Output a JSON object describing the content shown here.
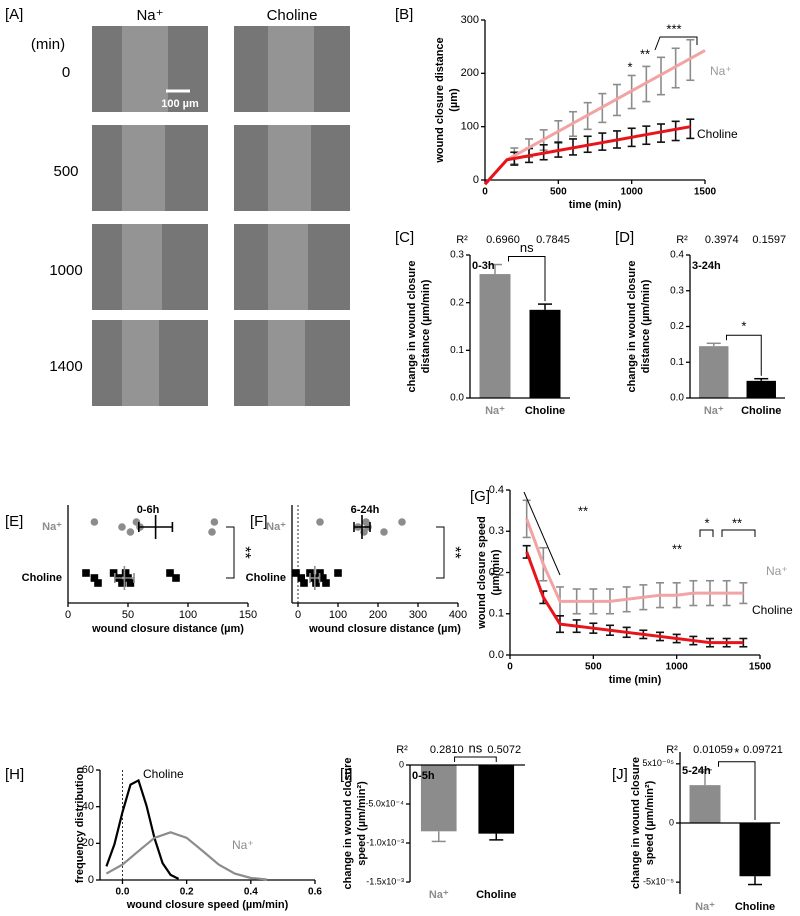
{
  "images": {
    "panel": "[A]",
    "columns": [
      "Na⁺",
      "Choline"
    ],
    "unit_label": "(min)",
    "rows": [
      "0",
      "500",
      "1000",
      "1400"
    ],
    "scale_bar": "100 µm"
  },
  "chart_data": [
    {
      "panel": "[B]",
      "type": "line",
      "xlabel": "time (min)",
      "ylabel": [
        "wound closure distance",
        "(µm)"
      ],
      "xlim": [
        0,
        1500
      ],
      "xticks": [
        0,
        500,
        1000,
        1500
      ],
      "ylim": [
        0,
        300
      ],
      "yticks": [
        0,
        100,
        200,
        300
      ],
      "annotations": [
        "*",
        "**",
        "***"
      ],
      "series": [
        {
          "name": "Na⁺",
          "color": "#f2a3a3",
          "error_color": "#8c8c8c",
          "label_color": "#999999",
          "x": [
            200,
            300,
            400,
            500,
            600,
            700,
            800,
            900,
            1000,
            1100,
            1200,
            1300,
            1400
          ],
          "values": [
            45,
            60,
            75,
            90,
            105,
            120,
            135,
            150,
            165,
            180,
            195,
            210,
            225
          ],
          "errors": [
            15,
            17,
            19,
            21,
            23,
            25,
            27,
            29,
            31,
            33,
            35,
            37,
            38
          ],
          "fit_x": [
            0,
            150,
            1500
          ],
          "fit_values": [
            -8,
            38,
            243
          ]
        },
        {
          "name": "Choline",
          "color": "#e8141c",
          "error_color": "#111111",
          "label_color": "#000000",
          "x": [
            200,
            300,
            400,
            500,
            600,
            700,
            800,
            900,
            1000,
            1100,
            1200,
            1300,
            1400
          ],
          "values": [
            40,
            46,
            52,
            57,
            62,
            67,
            72,
            76,
            80,
            84,
            88,
            92,
            96
          ],
          "errors": [
            12,
            13,
            14,
            14,
            15,
            15,
            16,
            16,
            17,
            17,
            17,
            18,
            18
          ],
          "fit_x": [
            0,
            150,
            1400
          ],
          "fit_values": [
            -8,
            38,
            100
          ]
        }
      ]
    },
    {
      "panel": "[C]",
      "type": "bar",
      "title": "0-3h",
      "ylabel": [
        "change in wound closure",
        "distance (µm/min)"
      ],
      "categories": [
        "Na⁺",
        "Choline"
      ],
      "label_colors": [
        "#8c8c8c",
        "#000000"
      ],
      "colors": [
        "#8c8c8c",
        "#000000"
      ],
      "values": [
        0.26,
        0.185
      ],
      "errors": [
        0.02,
        0.012
      ],
      "ylim": [
        0,
        0.3
      ],
      "yticks": [
        {
          "value": 0,
          "label": "0.0"
        },
        0.1,
        0.2,
        0.3
      ],
      "r2_label": "R²",
      "r2": [
        "0.6960",
        "0.7845"
      ],
      "significance": "ns"
    },
    {
      "panel": "[D]",
      "type": "bar",
      "title": "3-24h",
      "ylabel": [
        "change in wound closure",
        "distance (µm/min)"
      ],
      "categories": [
        "Na⁺",
        "Choline"
      ],
      "label_colors": [
        "#8c8c8c",
        "#000000"
      ],
      "colors": [
        "#8c8c8c",
        "#000000"
      ],
      "values": [
        0.145,
        0.048
      ],
      "errors": [
        0.008,
        0.006
      ],
      "ylim": [
        0,
        0.4
      ],
      "yticks": [
        {
          "value": 0,
          "label": "0.0"
        },
        0.1,
        0.2,
        0.3,
        0.4
      ],
      "r2_label": "R²",
      "r2": [
        "0.3974",
        "0.1597"
      ],
      "significance": "*"
    },
    {
      "panel": "[E]",
      "type": "dot",
      "title": "0-6h",
      "xlabel": "wound closure distance (µm)",
      "xlim": [
        0,
        150
      ],
      "xticks": [
        0,
        50,
        100,
        150
      ],
      "significance": "**",
      "groups": [
        {
          "category": "Na⁺",
          "label_color": "#8c8c8c",
          "color": "#8c8c8c",
          "bar_color": "#000000",
          "marker": "circle",
          "values": [
            22,
            45,
            52,
            57,
            60,
            120,
            122
          ],
          "mean": 73,
          "error": 14
        },
        {
          "category": "Choline",
          "label_color": "#000000",
          "color": "#000000",
          "bar_color": "#8c8c8c",
          "marker": "square",
          "values": [
            15,
            22,
            25,
            38,
            42,
            45,
            48,
            50,
            52,
            85,
            90
          ],
          "mean": 47,
          "error": 8
        }
      ]
    },
    {
      "panel": "[F]",
      "type": "dot",
      "title": "6-24h",
      "xlabel": "wound closure distance (µm)",
      "xlim": [
        -15,
        400
      ],
      "xticks": [
        0,
        100,
        200,
        300,
        400
      ],
      "reference_line": 0,
      "significance": "**",
      "groups": [
        {
          "category": "Na⁺",
          "label_color": "#8c8c8c",
          "color": "#8c8c8c",
          "bar_color": "#000000",
          "marker": "circle",
          "values": [
            55,
            150,
            165,
            170,
            175,
            215,
            260
          ],
          "mean": 160,
          "error": 20
        },
        {
          "category": "Choline",
          "label_color": "#000000",
          "color": "#000000",
          "bar_color": "#8c8c8c",
          "marker": "square",
          "values": [
            -5,
            8,
            15,
            30,
            40,
            45,
            55,
            62,
            70,
            100
          ],
          "mean": 42,
          "error": 12
        }
      ]
    },
    {
      "panel": "[G]",
      "type": "line",
      "xlabel": "time (min)",
      "ylabel": [
        "wound closure speed",
        "(µm/min)"
      ],
      "xlim": [
        0,
        1500
      ],
      "xticks": [
        0,
        500,
        1000,
        1500
      ],
      "ylim": [
        0,
        0.4
      ],
      "yticks": [
        {
          "value": 0,
          "label": "0.0"
        },
        0.1,
        0.2,
        0.3,
        0.4
      ],
      "annotations": [
        "**",
        "**",
        "*",
        "**"
      ],
      "series": [
        {
          "name": "Na⁺",
          "color": "#f2a3a3",
          "error_color": "#8c8c8c",
          "label_color": "#999999",
          "x": [
            100,
            200,
            300,
            400,
            500,
            600,
            700,
            800,
            900,
            1000,
            1100,
            1200,
            1300,
            1400
          ],
          "values": [
            0.33,
            0.22,
            0.13,
            0.13,
            0.13,
            0.13,
            0.135,
            0.14,
            0.145,
            0.145,
            0.15,
            0.15,
            0.15,
            0.15
          ],
          "errors": [
            0.045,
            0.04,
            0.035,
            0.03,
            0.03,
            0.03,
            0.03,
            0.03,
            0.03,
            0.03,
            0.03,
            0.03,
            0.03,
            0.025
          ]
        },
        {
          "name": "Choline",
          "color": "#e8141c",
          "error_color": "#111111",
          "label_color": "#000000",
          "x": [
            100,
            200,
            300,
            400,
            500,
            600,
            700,
            800,
            900,
            1000,
            1100,
            1200,
            1300,
            1400
          ],
          "values": [
            0.25,
            0.14,
            0.075,
            0.07,
            0.065,
            0.06,
            0.055,
            0.05,
            0.045,
            0.04,
            0.035,
            0.03,
            0.03,
            0.03
          ],
          "errors": [
            0.015,
            0.015,
            0.02,
            0.015,
            0.012,
            0.012,
            0.012,
            0.01,
            0.01,
            0.01,
            0.01,
            0.01,
            0.01,
            0.01
          ]
        }
      ]
    },
    {
      "panel": "[H]",
      "type": "density",
      "xlabel": "wound closure speed (µm/min)",
      "ylabel": "frequency distribution",
      "xlim": [
        -0.07,
        0.6
      ],
      "xticks": [
        {
          "value": 0,
          "label": "0.0"
        },
        0.2,
        0.4,
        0.6
      ],
      "ylim": [
        0,
        60
      ],
      "yticks": [
        0,
        20,
        40,
        60
      ],
      "reference_line": 0,
      "series": [
        {
          "name": "Choline",
          "color": "#000000",
          "label_color": "#000000",
          "x": [
            -0.05,
            -0.025,
            0,
            0.025,
            0.05,
            0.075,
            0.1,
            0.125,
            0.15,
            0.175
          ],
          "values": [
            7.4,
            19.5,
            37,
            52,
            54.3,
            40.5,
            22.7,
            9.2,
            2.8,
            0.6
          ]
        },
        {
          "name": "Na⁺",
          "color": "#8c8c8c",
          "label_color": "#8c8c8c",
          "x": [
            -0.05,
            0,
            0.05,
            0.1,
            0.15,
            0.2,
            0.25,
            0.3,
            0.35,
            0.4,
            0.45
          ],
          "values": [
            3.5,
            8.4,
            15.8,
            23,
            26,
            23,
            15.8,
            8.4,
            3.5,
            1.1,
            0.3
          ]
        }
      ]
    },
    {
      "panel": "[I]",
      "type": "bar",
      "title": "0-5h",
      "ylabel": [
        "change in wound closure",
        "speed (µm/min²)"
      ],
      "categories": [
        "Na⁺",
        "Choline"
      ],
      "label_colors": [
        "#8c8c8c",
        "#000000"
      ],
      "colors": [
        "#8c8c8c",
        "#000000"
      ],
      "values": [
        -0.00085,
        -0.00088
      ],
      "errors": [
        0.00013,
        8e-05
      ],
      "ylim": [
        -0.0015,
        0
      ],
      "yticks": [
        0,
        {
          "value": -0.0005,
          "label": "-5.0x10⁻⁴"
        },
        {
          "value": -0.001,
          "label": "-1.0x10⁻³"
        },
        {
          "value": -0.0015,
          "label": "-1.5x10⁻³"
        }
      ],
      "r2_label": "R²",
      "r2": [
        "0.2810",
        "0.5072"
      ],
      "significance": "ns"
    },
    {
      "panel": "[J]",
      "type": "bar",
      "title": "5-24h",
      "ylabel": [
        "change in wound closure",
        "speed (µm/min²)"
      ],
      "categories": [
        "Na⁺",
        "Choline"
      ],
      "label_colors": [
        "#8c8c8c",
        "#000000"
      ],
      "colors": [
        "#8c8c8c",
        "#000000"
      ],
      "values": [
        3.2e-05,
        -4.5e-05
      ],
      "errors": [
        1.3e-05,
        7e-06
      ],
      "ylim": [
        -6e-05,
        6e-05
      ],
      "yticks": [
        {
          "value": 5e-05,
          "label": "5x10⁻⁰⁵"
        },
        0,
        {
          "value": -5e-05,
          "label": "-5x10⁻⁵"
        }
      ],
      "r2_label": "R²",
      "r2": [
        "0.01059",
        "0.09721"
      ],
      "significance": "*"
    }
  ]
}
